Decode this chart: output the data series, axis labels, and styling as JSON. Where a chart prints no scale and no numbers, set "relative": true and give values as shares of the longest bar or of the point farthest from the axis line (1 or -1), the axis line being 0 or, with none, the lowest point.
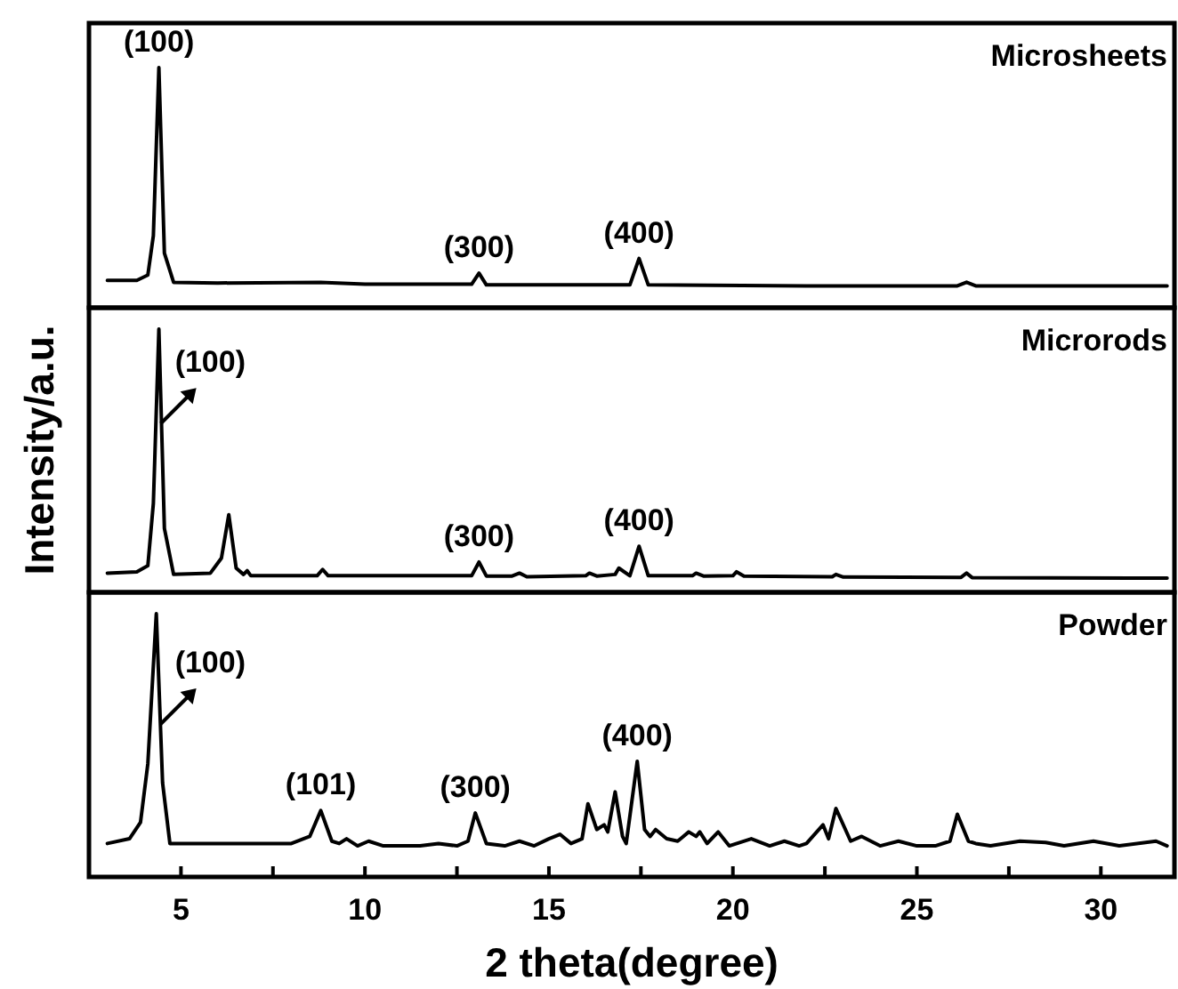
{
  "chart_data": [
    {
      "type": "line",
      "title": "Microsheets",
      "relative": true,
      "xlim": [
        2.5,
        32
      ],
      "tick_labels": false,
      "series": [
        {
          "color": "#000000",
          "x": [
            3.0,
            3.8,
            4.1,
            4.25,
            4.4,
            4.55,
            4.8,
            6.0,
            8.8,
            10.0,
            12.9,
            13.1,
            13.3,
            17.2,
            17.45,
            17.7,
            22.0,
            26.1,
            26.35,
            26.6,
            31.8
          ],
          "values": [
            0.114,
            0.114,
            0.136,
            0.3,
            1,
            0.227,
            0.106,
            0.103,
            0.106,
            0.098,
            0.098,
            0.144,
            0.095,
            0.095,
            0.205,
            0.095,
            0.091,
            0.091,
            0.106,
            0.091,
            0.091
          ]
        }
      ],
      "annotations": [
        {
          "text": "(100)",
          "x": 4.4,
          "y": 1
        },
        {
          "text": "(300)",
          "x": 13.1,
          "y": 0.144
        },
        {
          "text": "(400)",
          "x": 17.45,
          "y": 0.205
        }
      ]
    },
    {
      "type": "line",
      "title": "Microrods",
      "relative": true,
      "xlim": [
        2.5,
        32
      ],
      "tick_labels": false,
      "ylabel": "Intensity/a.u.",
      "series": [
        {
          "color": "#000000",
          "x": [
            3.0,
            3.8,
            4.1,
            4.25,
            4.4,
            4.55,
            4.8,
            5.8,
            6.1,
            6.3,
            6.5,
            6.7,
            6.8,
            6.9,
            8.7,
            8.85,
            9.0,
            12.9,
            13.1,
            13.3,
            14.0,
            14.2,
            14.4,
            16.0,
            16.1,
            16.3,
            16.8,
            16.9,
            17.2,
            17.45,
            17.7,
            18.9,
            19.0,
            19.2,
            20.0,
            20.1,
            20.3,
            22.7,
            22.8,
            23.0,
            26.2,
            26.35,
            26.5,
            31.8
          ],
          "values": [
            0.073,
            0.078,
            0.101,
            0.338,
            1,
            0.243,
            0.068,
            0.073,
            0.13,
            0.295,
            0.092,
            0.068,
            0.082,
            0.063,
            0.063,
            0.087,
            0.063,
            0.063,
            0.115,
            0.062,
            0.062,
            0.073,
            0.059,
            0.063,
            0.073,
            0.062,
            0.068,
            0.092,
            0.063,
            0.175,
            0.063,
            0.063,
            0.073,
            0.062,
            0.063,
            0.078,
            0.062,
            0.059,
            0.068,
            0.058,
            0.057,
            0.073,
            0.056,
            0.054
          ]
        }
      ],
      "annotations": [
        {
          "text": "(100)",
          "x": 4.45,
          "y": 0.641
        },
        {
          "text": "(300)",
          "x": 13.1,
          "y": 0.115
        },
        {
          "text": "(400)",
          "x": 17.45,
          "y": 0.175
        }
      ]
    },
    {
      "type": "line",
      "title": "Powder",
      "relative": true,
      "xlim": [
        2.5,
        32
      ],
      "tick_labels": "x",
      "xlabel": "2 theta(degree)",
      "xticks": [
        5,
        {
          "value": 7.5,
          "label": null
        },
        10,
        {
          "value": 12.5,
          "label": null
        },
        15,
        {
          "value": 17.5,
          "label": null
        },
        20,
        {
          "value": 22.5,
          "label": null
        },
        25,
        {
          "value": 27.5,
          "label": null
        },
        30
      ],
      "series": [
        {
          "color": "#000000",
          "x": [
            3.0,
            3.6,
            3.9,
            4.1,
            4.33,
            4.5,
            4.7,
            6.0,
            8.0,
            8.5,
            8.8,
            9.1,
            9.3,
            9.5,
            9.8,
            10.1,
            10.5,
            11.5,
            12.0,
            12.5,
            12.8,
            13.0,
            13.3,
            13.8,
            14.2,
            14.6,
            15.0,
            15.3,
            15.6,
            15.9,
            16.06,
            16.3,
            16.5,
            16.6,
            16.8,
            17.0,
            17.1,
            17.4,
            17.6,
            17.75,
            17.9,
            18.2,
            18.5,
            18.8,
            19.0,
            19.1,
            19.3,
            19.6,
            19.9,
            20.5,
            21.0,
            21.4,
            21.8,
            22.0,
            22.45,
            22.6,
            22.8,
            23.2,
            23.5,
            24.0,
            24.5,
            25.0,
            25.5,
            25.9,
            26.1,
            26.4,
            26.6,
            27.0,
            27.8,
            28.5,
            29.0,
            29.8,
            30.5,
            31.5,
            31.8
          ],
          "values": [
            0.127,
            0.145,
            0.207,
            0.43,
            1,
            0.358,
            0.127,
            0.127,
            0.127,
            0.154,
            0.252,
            0.136,
            0.127,
            0.145,
            0.118,
            0.136,
            0.118,
            0.118,
            0.127,
            0.118,
            0.136,
            0.243,
            0.127,
            0.118,
            0.136,
            0.118,
            0.145,
            0.162,
            0.127,
            0.145,
            0.278,
            0.18,
            0.198,
            0.171,
            0.323,
            0.154,
            0.127,
            0.439,
            0.18,
            0.154,
            0.18,
            0.145,
            0.136,
            0.171,
            0.154,
            0.171,
            0.127,
            0.171,
            0.118,
            0.145,
            0.118,
            0.136,
            0.118,
            0.127,
            0.198,
            0.145,
            0.26,
            0.136,
            0.154,
            0.118,
            0.136,
            0.118,
            0.118,
            0.136,
            0.238,
            0.136,
            0.127,
            0.118,
            0.136,
            0.131,
            0.118,
            0.136,
            0.118,
            0.136,
            0.118
          ]
        }
      ],
      "annotations": [
        {
          "text": "(100)",
          "x": 4.45,
          "y": 0.581
        },
        {
          "text": "(101)",
          "x": 8.8,
          "y": 0.252
        },
        {
          "text": "(300)",
          "x": 13.0,
          "y": 0.243
        },
        {
          "text": "(400)",
          "x": 17.4,
          "y": 0.439
        }
      ]
    }
  ]
}
